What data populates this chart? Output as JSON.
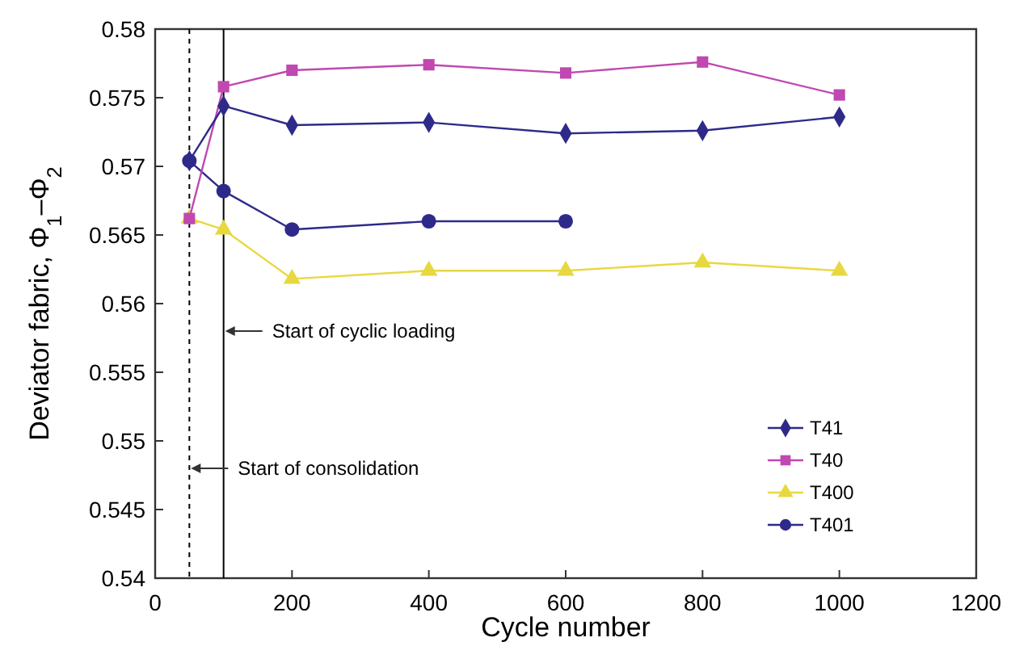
{
  "chart_data": {
    "type": "line",
    "xlabel": "Cycle number",
    "ylabel": "Deviator fabric, Φ$_{1}$–Φ$_{2}$",
    "x": [
      50,
      100,
      200,
      400,
      600,
      800,
      1000
    ],
    "series": [
      {
        "name": "T41",
        "color": "#2e2a8a",
        "marker": "diamond",
        "values": [
          0.5704,
          0.5744,
          0.573,
          0.5732,
          0.5724,
          0.5726,
          0.5736
        ]
      },
      {
        "name": "T40",
        "color": "#c048b0",
        "marker": "square",
        "values": [
          0.5662,
          0.5758,
          0.577,
          0.5774,
          0.5768,
          0.5776,
          0.5752
        ]
      },
      {
        "name": "T400",
        "color": "#e8d840",
        "marker": "triangle",
        "values": [
          0.5662,
          0.5654,
          0.5618,
          0.5624,
          0.5624,
          0.563,
          0.5624
        ]
      },
      {
        "name": "T401",
        "color": "#2e2a8a",
        "marker": "circle",
        "values": [
          0.5704,
          0.5682,
          0.5654,
          0.566,
          0.566,
          null,
          null
        ]
      }
    ],
    "xlim": [
      0,
      1200
    ],
    "xticks": [
      0,
      200,
      400,
      600,
      800,
      1000,
      1200
    ],
    "ylim": [
      0.54,
      0.58
    ],
    "yticks": [
      0.54,
      0.545,
      0.55,
      0.555,
      0.56,
      0.565,
      0.57,
      0.575,
      0.58
    ],
    "grid": false,
    "legend": "right",
    "ref_lines": [
      {
        "axis": "x",
        "value": 50,
        "line_style": "dashed",
        "color": "#000000"
      },
      {
        "axis": "x",
        "value": 100,
        "line_style": "solid",
        "color": "#000000"
      }
    ],
    "annotations": [
      {
        "text": "Start of cyclic loading",
        "x": 100,
        "y": 0.558
      },
      {
        "text": "Start of consolidation",
        "x": 50,
        "y": 0.548
      }
    ]
  }
}
